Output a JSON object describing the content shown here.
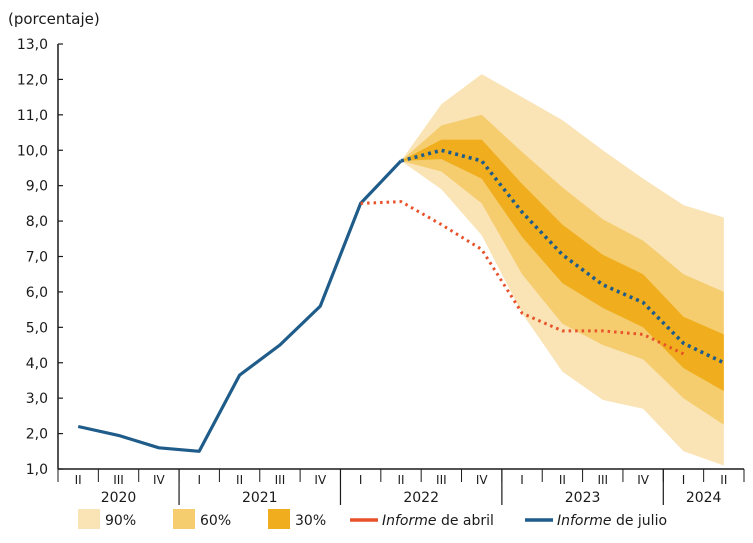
{
  "chart_data": {
    "type": "line",
    "ylabel": "(porcentaje)",
    "ylim": [
      1.0,
      13.0
    ],
    "y_ticks": [
      "1,0",
      "2,0",
      "3,0",
      "4,0",
      "5,0",
      "6,0",
      "7,0",
      "8,0",
      "9,0",
      "10,0",
      "11,0",
      "12,0",
      "13,0"
    ],
    "x_quarters": [
      "2020-II",
      "2020-III",
      "2020-IV",
      "2021-I",
      "2021-II",
      "2021-III",
      "2021-IV",
      "2022-I",
      "2022-II",
      "2022-III",
      "2022-IV",
      "2023-I",
      "2023-II",
      "2023-III",
      "2023-IV",
      "2024-I",
      "2024-II"
    ],
    "quarter_labels": [
      {
        "q": "2020-II",
        "label": "II"
      },
      {
        "q": "2020-III",
        "label": "III"
      },
      {
        "q": "2020-IV",
        "label": "IV"
      },
      {
        "q": "2021-I",
        "label": "I"
      },
      {
        "q": "2021-II",
        "label": "II"
      },
      {
        "q": "2021-III",
        "label": "III"
      },
      {
        "q": "2021-IV",
        "label": "IV"
      },
      {
        "q": "2022-I",
        "label": "I"
      },
      {
        "q": "2022-II",
        "label": "II"
      },
      {
        "q": "2022-III",
        "label": "III"
      },
      {
        "q": "2022-IV",
        "label": "IV"
      },
      {
        "q": "2023-I",
        "label": "I"
      },
      {
        "q": "2023-II",
        "label": "II"
      },
      {
        "q": "2023-III",
        "label": "III"
      },
      {
        "q": "2023-IV",
        "label": "IV"
      },
      {
        "q": "2024-I",
        "label": "I"
      },
      {
        "q": "2024-II",
        "label": "II"
      }
    ],
    "years": [
      {
        "label": "2020",
        "start": "2020-II",
        "end": "2020-IV"
      },
      {
        "label": "2021",
        "start": "2021-I",
        "end": "2021-IV"
      },
      {
        "label": "2022",
        "start": "2022-I",
        "end": "2022-IV"
      },
      {
        "label": "2023",
        "start": "2023-I",
        "end": "2023-IV"
      },
      {
        "label": "2024",
        "start": "2024-I",
        "end": "2024-II"
      }
    ],
    "history": {
      "x": [
        "2020-II",
        "2020-III",
        "2020-IV",
        "2021-I",
        "2021-II",
        "2021-III",
        "2021-IV",
        "2022-I",
        "2022-II"
      ],
      "values": [
        2.2,
        1.95,
        1.6,
        1.5,
        3.65,
        4.5,
        5.6,
        8.5,
        9.7
      ]
    },
    "series": [
      {
        "name": "Informe de abril",
        "name_italic": "Informe",
        "name_rest": " de abril",
        "color": "#e8522a",
        "style": "dotted",
        "x": [
          "2022-I",
          "2022-II",
          "2022-III",
          "2022-IV",
          "2023-I",
          "2023-II",
          "2023-III",
          "2023-IV",
          "2024-I"
        ],
        "values": [
          8.5,
          8.55,
          7.9,
          7.2,
          5.4,
          4.9,
          4.9,
          4.8,
          4.25
        ]
      },
      {
        "name": "Informe de julio",
        "name_italic": "Informe",
        "name_rest": " de julio",
        "color": "#1f5c8a",
        "style": "dotted",
        "x": [
          "2022-II",
          "2022-III",
          "2022-IV",
          "2023-I",
          "2023-II",
          "2023-III",
          "2023-IV",
          "2024-I",
          "2024-II"
        ],
        "values": [
          9.7,
          10.0,
          9.7,
          8.25,
          7.05,
          6.2,
          5.7,
          4.55,
          4.0
        ]
      }
    ],
    "fan_x": [
      "2022-II",
      "2022-III",
      "2022-IV",
      "2023-I",
      "2023-II",
      "2023-III",
      "2023-IV",
      "2024-I",
      "2024-II"
    ],
    "bands": [
      {
        "name": "90%",
        "color": "#fae3b4",
        "lower": [
          9.7,
          8.9,
          7.6,
          5.4,
          3.75,
          2.95,
          2.7,
          1.5,
          1.1
        ],
        "upper": [
          9.7,
          11.3,
          12.15,
          11.5,
          10.85,
          10.0,
          9.2,
          8.45,
          8.1
        ]
      },
      {
        "name": "60%",
        "color": "#f5cd6e",
        "lower": [
          9.7,
          9.4,
          8.5,
          6.5,
          5.1,
          4.5,
          4.1,
          3.0,
          2.25
        ],
        "upper": [
          9.7,
          10.7,
          11.0,
          9.95,
          8.95,
          8.05,
          7.45,
          6.5,
          6.0
        ]
      },
      {
        "name": "30%",
        "color": "#f0ae1e",
        "lower": [
          9.7,
          9.75,
          9.2,
          7.55,
          6.25,
          5.55,
          5.0,
          3.85,
          3.2
        ],
        "upper": [
          9.7,
          10.3,
          10.3,
          9.05,
          7.9,
          7.05,
          6.5,
          5.3,
          4.8
        ]
      }
    ],
    "legend": {
      "placement": "bottom"
    },
    "grid": false
  }
}
